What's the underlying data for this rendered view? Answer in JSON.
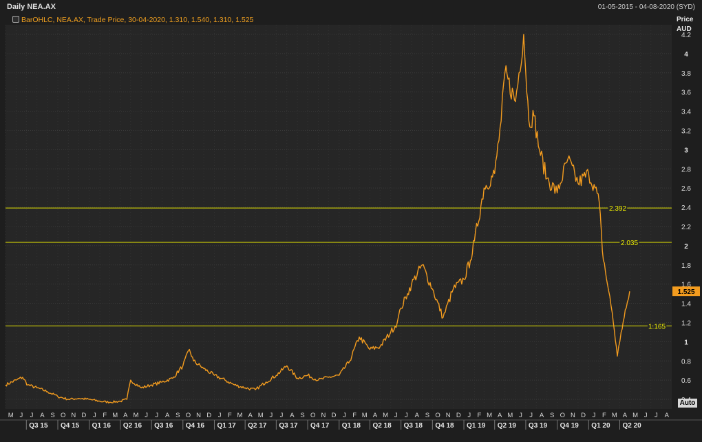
{
  "header": {
    "title": "Daily NEA.AX",
    "date_range": "01-05-2015 - 04-08-2020 (SYD)",
    "legend": "BarOHLC, NEA.AX, Trade Price, 30-04-2020, 1.310, 1.540, 1.310, 1.525"
  },
  "axis": {
    "price_label": "Price",
    "currency_label": "AUD",
    "auto_label": "Auto"
  },
  "colors": {
    "background": "#262626",
    "grid": "#3c3c3c",
    "series": "#f39c1f",
    "hline": "#e6e600",
    "last_badge": "#f39c1f"
  },
  "chart_data": {
    "type": "line",
    "title": "Daily NEA.AX",
    "ylabel": "Price AUD",
    "ylim": [
      0.3,
      4.3
    ],
    "y_ticks": [
      0.4,
      0.6,
      0.8,
      1,
      1.2,
      1.4,
      1.6,
      1.8,
      2,
      2.2,
      2.4,
      2.6,
      2.8,
      3,
      3.2,
      3.4,
      3.6,
      3.8,
      4,
      4.2
    ],
    "y_tick_labels": [
      "0.4",
      "0.6",
      "0.8",
      "1",
      "1.2",
      "1.4",
      "1.6",
      "1.8",
      "2",
      "2.2",
      "2.4",
      "2.6",
      "2.8",
      "3",
      "3.2",
      "3.4",
      "3.6",
      "3.8",
      "4",
      "4.2"
    ],
    "x_range": [
      "2015-05-01",
      "2020-08-31"
    ],
    "months": [
      "M",
      "J",
      "J",
      "A",
      "S",
      "O",
      "N",
      "D",
      "J",
      "F",
      "M",
      "A",
      "M",
      "J",
      "J",
      "A",
      "S",
      "O",
      "N",
      "D",
      "J",
      "F",
      "M",
      "A",
      "M",
      "J",
      "J",
      "A",
      "S",
      "O",
      "N",
      "D",
      "J",
      "F",
      "M",
      "A",
      "M",
      "J",
      "J",
      "A",
      "S",
      "O",
      "N",
      "D",
      "J",
      "F",
      "M",
      "A",
      "M",
      "J",
      "J",
      "A",
      "S",
      "O",
      "N",
      "D",
      "J",
      "F",
      "M",
      "A",
      "M",
      "J",
      "J",
      "A"
    ],
    "quarters": [
      "Q3 15",
      "Q4 15",
      "Q1 16",
      "Q2 16",
      "Q3 16",
      "Q4 16",
      "Q1 17",
      "Q2 17",
      "Q3 17",
      "Q4 17",
      "Q1 18",
      "Q2 18",
      "Q3 18",
      "Q4 18",
      "Q1 19",
      "Q2 19",
      "Q3 19",
      "Q4 19",
      "Q1 20",
      "Q2 20"
    ],
    "series": [
      {
        "values": [
          [
            "2015-05-01",
            0.55
          ],
          [
            "2015-06-01",
            0.6
          ],
          [
            "2015-06-20",
            0.63
          ],
          [
            "2015-07-05",
            0.55
          ],
          [
            "2015-08-01",
            0.52
          ],
          [
            "2015-09-01",
            0.48
          ],
          [
            "2015-10-01",
            0.43
          ],
          [
            "2015-11-01",
            0.4
          ],
          [
            "2015-12-01",
            0.41
          ],
          [
            "2016-01-01",
            0.4
          ],
          [
            "2016-02-01",
            0.38
          ],
          [
            "2016-03-01",
            0.37
          ],
          [
            "2016-04-01",
            0.38
          ],
          [
            "2016-04-20",
            0.4
          ],
          [
            "2016-05-01",
            0.6
          ],
          [
            "2016-06-01",
            0.52
          ],
          [
            "2016-07-01",
            0.55
          ],
          [
            "2016-08-01",
            0.58
          ],
          [
            "2016-09-01",
            0.62
          ],
          [
            "2016-10-01",
            0.75
          ],
          [
            "2016-10-20",
            0.92
          ],
          [
            "2016-11-01",
            0.8
          ],
          [
            "2016-12-01",
            0.72
          ],
          [
            "2017-01-01",
            0.65
          ],
          [
            "2017-02-01",
            0.6
          ],
          [
            "2017-03-01",
            0.55
          ],
          [
            "2017-04-01",
            0.52
          ],
          [
            "2017-05-01",
            0.5
          ],
          [
            "2017-06-01",
            0.58
          ],
          [
            "2017-07-01",
            0.65
          ],
          [
            "2017-08-01",
            0.75
          ],
          [
            "2017-09-01",
            0.62
          ],
          [
            "2017-10-01",
            0.65
          ],
          [
            "2017-11-01",
            0.6
          ],
          [
            "2017-12-01",
            0.63
          ],
          [
            "2018-01-01",
            0.65
          ],
          [
            "2018-02-01",
            0.8
          ],
          [
            "2018-03-01",
            1.05
          ],
          [
            "2018-04-01",
            0.92
          ],
          [
            "2018-05-01",
            0.95
          ],
          [
            "2018-06-01",
            1.1
          ],
          [
            "2018-06-20",
            1.2
          ],
          [
            "2018-07-01",
            1.35
          ],
          [
            "2018-07-20",
            1.5
          ],
          [
            "2018-08-01",
            1.6
          ],
          [
            "2018-09-01",
            1.8
          ],
          [
            "2018-10-01",
            1.55
          ],
          [
            "2018-11-01",
            1.25
          ],
          [
            "2018-12-01",
            1.55
          ],
          [
            "2019-01-01",
            1.65
          ],
          [
            "2019-01-20",
            1.85
          ],
          [
            "2019-02-01",
            2.05
          ],
          [
            "2019-03-01",
            2.6
          ],
          [
            "2019-04-01",
            2.75
          ],
          [
            "2019-04-20",
            3.3
          ],
          [
            "2019-05-01",
            3.8
          ],
          [
            "2019-06-01",
            3.5
          ],
          [
            "2019-06-25",
            4.2
          ],
          [
            "2019-07-10",
            3.3
          ],
          [
            "2019-07-25",
            3.35
          ],
          [
            "2019-08-10",
            3.0
          ],
          [
            "2019-09-01",
            2.7
          ],
          [
            "2019-10-01",
            2.55
          ],
          [
            "2019-11-01",
            2.9
          ],
          [
            "2019-12-01",
            2.65
          ],
          [
            "2020-01-01",
            2.75
          ],
          [
            "2020-01-20",
            2.6
          ],
          [
            "2020-02-01",
            2.45
          ],
          [
            "2020-02-10",
            1.95
          ],
          [
            "2020-02-25",
            1.6
          ],
          [
            "2020-03-10",
            1.3
          ],
          [
            "2020-03-25",
            0.85
          ],
          [
            "2020-04-05",
            1.1
          ],
          [
            "2020-04-20",
            1.35
          ],
          [
            "2020-04-30",
            1.525
          ]
        ]
      }
    ],
    "horizontal_lines": [
      {
        "value": 2.392,
        "label": "2.392"
      },
      {
        "value": 2.035,
        "label": "2.035"
      },
      {
        "value": 1.165,
        "label": "1.165"
      }
    ],
    "last_value": {
      "value": 1.525,
      "label": "1.525"
    },
    "grid": true
  }
}
